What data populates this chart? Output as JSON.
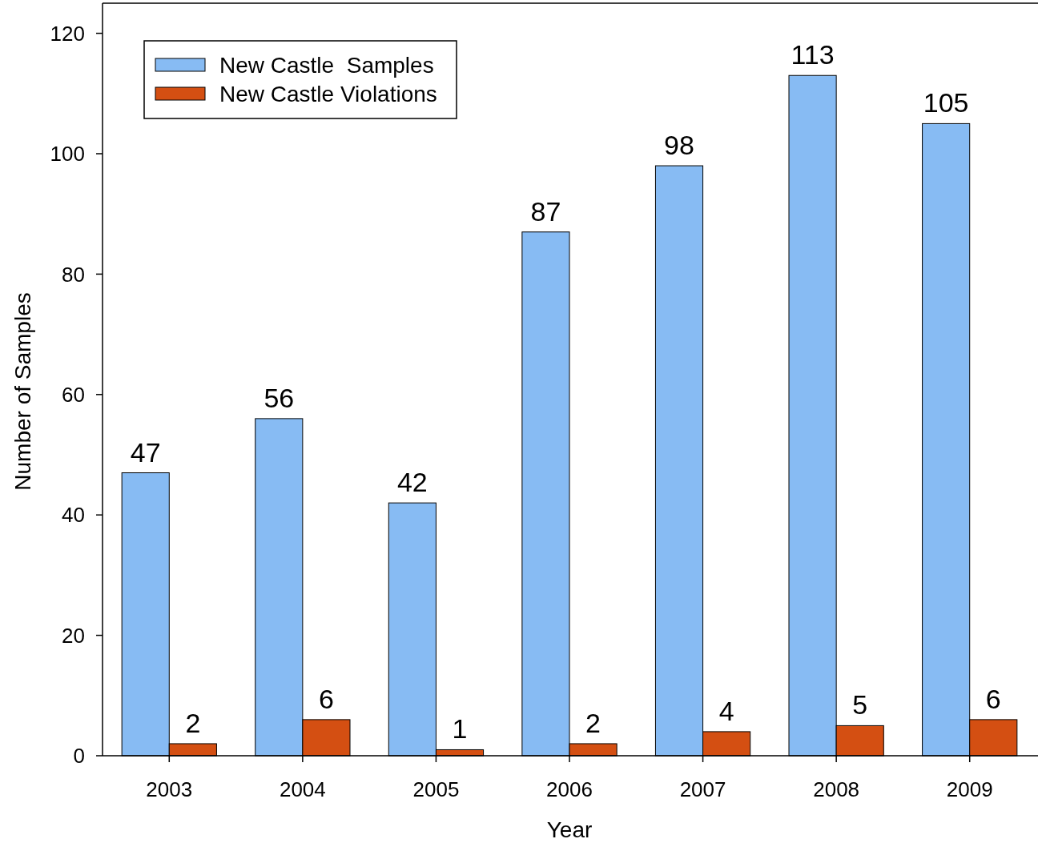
{
  "chart_data": {
    "type": "bar",
    "xlabel": "Year",
    "ylabel": "Number of Samples",
    "categories": [
      "2003",
      "2004",
      "2005",
      "2006",
      "2007",
      "2008",
      "2009"
    ],
    "series": [
      {
        "name": "New Castle  Samples",
        "color": "#87bbf3",
        "values": [
          47,
          56,
          42,
          87,
          98,
          113,
          105
        ]
      },
      {
        "name": "New Castle Violations",
        "color": "#d44f12",
        "values": [
          2,
          6,
          1,
          2,
          4,
          5,
          6
        ]
      }
    ],
    "ylim": [
      0,
      125
    ],
    "yticks": [
      0,
      20,
      40,
      60,
      80,
      100,
      120
    ],
    "data_labels": true,
    "legend": "top left",
    "grid": false
  }
}
